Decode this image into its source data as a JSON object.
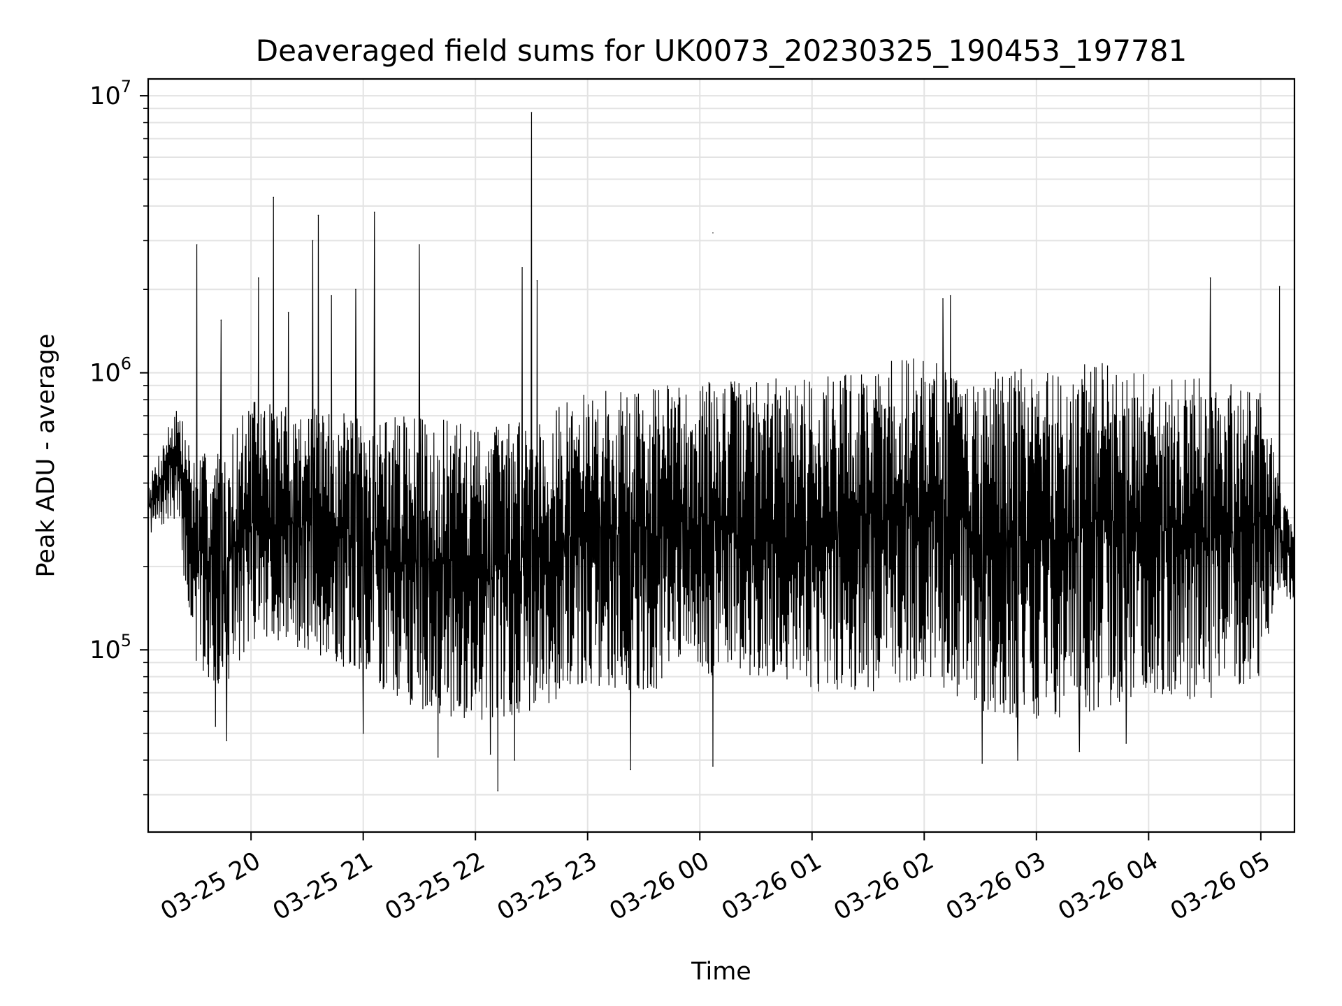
{
  "chart_data": {
    "type": "line",
    "title": "Deaveraged field sums for UK0073_20230325_190453_197781",
    "xlabel": "Time",
    "ylabel": "Peak ADU - average",
    "yscale": "log",
    "xlim": [
      "2023-03-25 19:05",
      "2023-03-26 05:18"
    ],
    "ylim": [
      22000,
      11500000
    ],
    "grid": true,
    "line_color": "#000000",
    "x_ticks": [
      "03-25 20",
      "03-25 21",
      "03-25 22",
      "03-25 23",
      "03-26 00",
      "03-26 01",
      "03-26 02",
      "03-26 03",
      "03-26 04",
      "03-26 05"
    ],
    "x_tick_times": [
      "2023-03-25 20:00",
      "2023-03-25 21:00",
      "2023-03-25 22:00",
      "2023-03-25 23:00",
      "2023-03-26 00:00",
      "2023-03-26 01:00",
      "2023-03-26 02:00",
      "2023-03-26 03:00",
      "2023-03-26 04:00",
      "2023-03-26 05:00"
    ],
    "y_ticks": [
      {
        "value": 100000,
        "base": "10",
        "exp": "5"
      },
      {
        "value": 1000000,
        "base": "10",
        "exp": "6"
      },
      {
        "value": 10000000,
        "base": "10",
        "exp": "7"
      }
    ],
    "envelope": {
      "description": "dense noisy series; per-time band of oscillation (data units)",
      "t": [
        "2023-03-25 19:05",
        "2023-03-25 19:20",
        "2023-03-25 19:30",
        "2023-03-25 19:45",
        "2023-03-25 20:00",
        "2023-03-25 20:30",
        "2023-03-25 21:00",
        "2023-03-25 21:30",
        "2023-03-25 22:00",
        "2023-03-25 22:30",
        "2023-03-25 23:00",
        "2023-03-25 23:30",
        "2023-03-26 00:00",
        "2023-03-26 00:30",
        "2023-03-26 01:00",
        "2023-03-26 01:30",
        "2023-03-26 02:00",
        "2023-03-26 02:30",
        "2023-03-26 03:00",
        "2023-03-26 03:30",
        "2023-03-26 04:00",
        "2023-03-26 04:30",
        "2023-03-26 05:00",
        "2023-03-26 05:08",
        "2023-03-26 05:18"
      ],
      "low": [
        260000,
        300000,
        90000,
        70000,
        110000,
        100000,
        80000,
        60000,
        55000,
        60000,
        75000,
        70000,
        80000,
        80000,
        70000,
        70000,
        80000,
        60000,
        55000,
        60000,
        70000,
        65000,
        80000,
        160000,
        150000
      ],
      "high": [
        400000,
        800000,
        500000,
        550000,
        800000,
        750000,
        700000,
        700000,
        650000,
        700000,
        850000,
        900000,
        950000,
        950000,
        1000000,
        1050000,
        1200000,
        1000000,
        1050000,
        1100000,
        1050000,
        950000,
        900000,
        500000,
        250000
      ]
    },
    "spikes": [
      {
        "t": "2023-03-25 19:31",
        "value": 2900000
      },
      {
        "t": "2023-03-25 19:44",
        "value": 1550000
      },
      {
        "t": "2023-03-25 20:04",
        "value": 2200000
      },
      {
        "t": "2023-03-25 20:12",
        "value": 4300000
      },
      {
        "t": "2023-03-25 20:20",
        "value": 1650000
      },
      {
        "t": "2023-03-25 20:33",
        "value": 3000000
      },
      {
        "t": "2023-03-25 20:36",
        "value": 3700000
      },
      {
        "t": "2023-03-25 20:43",
        "value": 1900000
      },
      {
        "t": "2023-03-25 20:56",
        "value": 2000000
      },
      {
        "t": "2023-03-25 21:06",
        "value": 3800000
      },
      {
        "t": "2023-03-25 21:30",
        "value": 2900000
      },
      {
        "t": "2023-03-25 22:25",
        "value": 2400000
      },
      {
        "t": "2023-03-25 22:30",
        "value": 8700000
      },
      {
        "t": "2023-03-25 22:33",
        "value": 2150000
      },
      {
        "t": "2023-03-26 00:07",
        "value": 3200000
      },
      {
        "t": "2023-03-26 02:10",
        "value": 1850000
      },
      {
        "t": "2023-03-26 02:14",
        "value": 1900000
      },
      {
        "t": "2023-03-26 04:33",
        "value": 2200000
      },
      {
        "t": "2023-03-26 05:10",
        "value": 2050000
      }
    ],
    "dips": [
      {
        "t": "2023-03-25 19:33",
        "value": 105000
      },
      {
        "t": "2023-03-25 19:41",
        "value": 53000
      },
      {
        "t": "2023-03-25 19:47",
        "value": 47000
      },
      {
        "t": "2023-03-25 21:00",
        "value": 50000
      },
      {
        "t": "2023-03-25 21:40",
        "value": 41000
      },
      {
        "t": "2023-03-25 22:08",
        "value": 42000
      },
      {
        "t": "2023-03-25 22:12",
        "value": 31000
      },
      {
        "t": "2023-03-25 22:21",
        "value": 40000
      },
      {
        "t": "2023-03-25 23:23",
        "value": 37000
      },
      {
        "t": "2023-03-26 00:07",
        "value": 38000
      },
      {
        "t": "2023-03-26 02:31",
        "value": 39000
      },
      {
        "t": "2023-03-26 02:50",
        "value": 40000
      },
      {
        "t": "2023-03-26 03:23",
        "value": 43000
      },
      {
        "t": "2023-03-26 03:48",
        "value": 46000
      }
    ]
  }
}
